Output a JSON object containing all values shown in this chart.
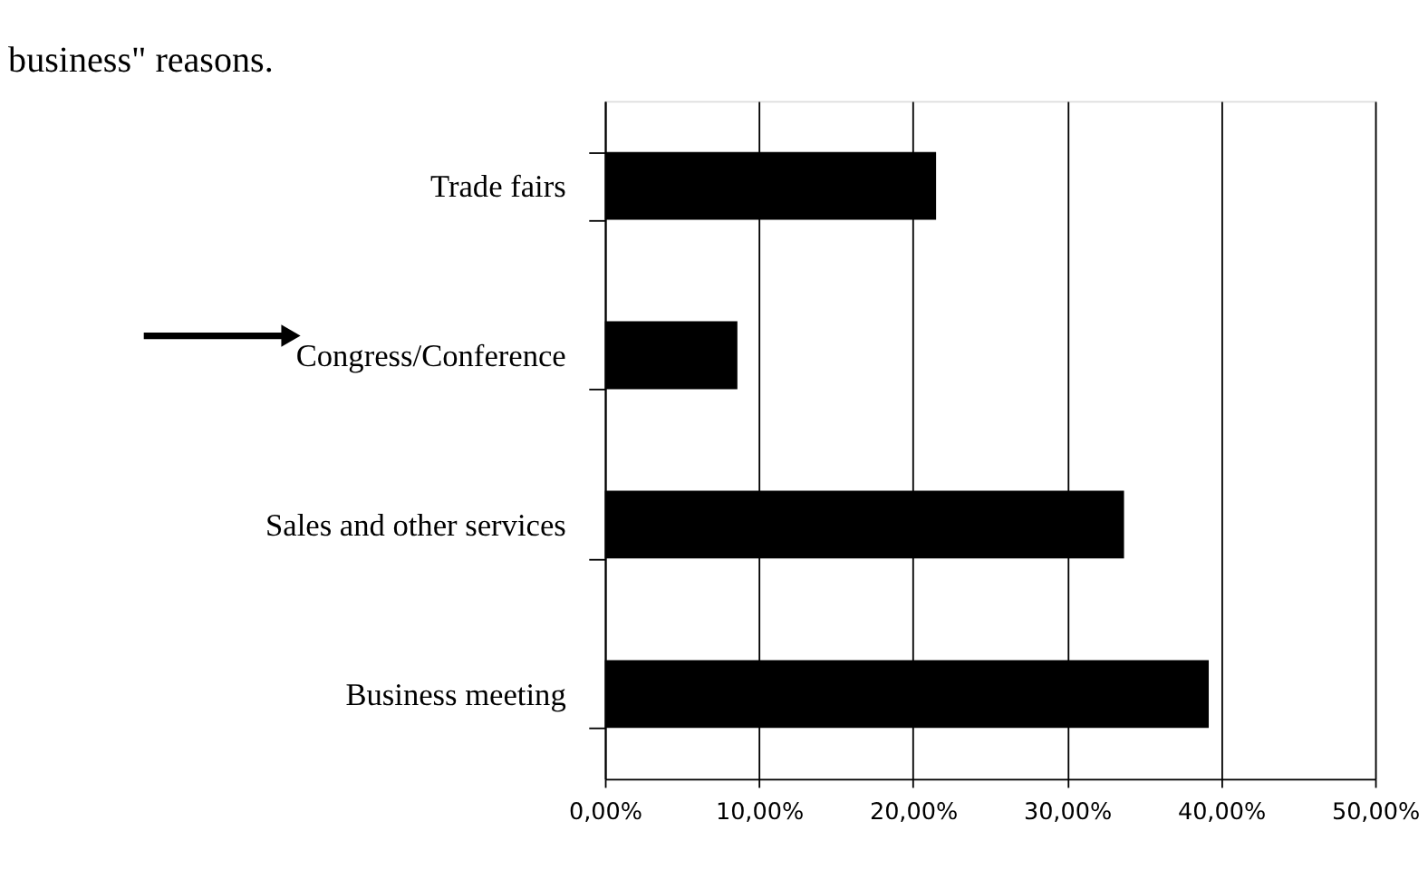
{
  "chart_data": {
    "type": "bar",
    "orientation": "horizontal",
    "title": "business\" reasons.",
    "categories": [
      "Trade fairs",
      "Congress/Conference",
      "Sales and other services",
      "Business meeting"
    ],
    "values": [
      21.5,
      8.6,
      33.7,
      39.2
    ],
    "color": "#000000",
    "xlim": [
      0,
      50
    ],
    "xticks": [
      {
        "value": 0,
        "label": "0,00%"
      },
      {
        "value": 10,
        "label": "10,00%"
      },
      {
        "value": 20,
        "label": "20,00%"
      },
      {
        "value": 30,
        "label": "30,00%"
      },
      {
        "value": 40,
        "label": "40,00%"
      },
      {
        "value": 50,
        "label": "50,00%"
      }
    ],
    "grid": "x"
  }
}
